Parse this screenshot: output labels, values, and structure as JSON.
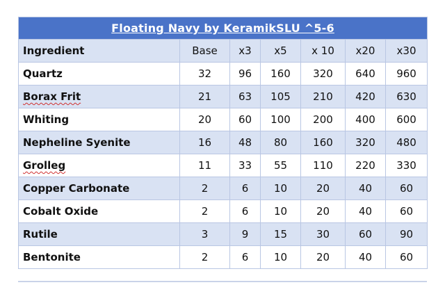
{
  "title": "Floating Navy by KeramikSLU  ^5-6",
  "columns": [
    "Ingredient",
    "Base",
    "x3",
    "x5",
    "x 10",
    "x20",
    "x30"
  ],
  "rows": [
    {
      "ingredient": "Quartz",
      "values": [
        "32",
        "96",
        "160",
        "320",
        "640",
        "960"
      ]
    },
    {
      "ingredient": "Borax Frit",
      "values": [
        "21",
        "63",
        "105",
        "210",
        "420",
        "630"
      ]
    },
    {
      "ingredient": "Whiting",
      "values": [
        "20",
        "60",
        "100",
        "200",
        "400",
        "600"
      ]
    },
    {
      "ingredient": "Nepheline Syenite",
      "values": [
        "16",
        "48",
        "80",
        "160",
        "320",
        "480"
      ]
    },
    {
      "ingredient": "Grolleg",
      "values": [
        "11",
        "33",
        "55",
        "110",
        "220",
        "330"
      ]
    },
    {
      "ingredient": "Copper Carbonate",
      "values": [
        "2",
        "6",
        "10",
        "20",
        "40",
        "60"
      ]
    },
    {
      "ingredient": "Cobalt Oxide",
      "values": [
        "2",
        "6",
        "10",
        "20",
        "40",
        "60"
      ]
    },
    {
      "ingredient": "Rutile",
      "values": [
        "3",
        "9",
        "15",
        "30",
        "60",
        "90"
      ]
    },
    {
      "ingredient": "Bentonite",
      "values": [
        "2",
        "6",
        "10",
        "20",
        "40",
        "60"
      ]
    }
  ],
  "colors": {
    "title_bar": "#4a73c8",
    "band": "#d9e2f3",
    "border": "#b9c6e3"
  }
}
